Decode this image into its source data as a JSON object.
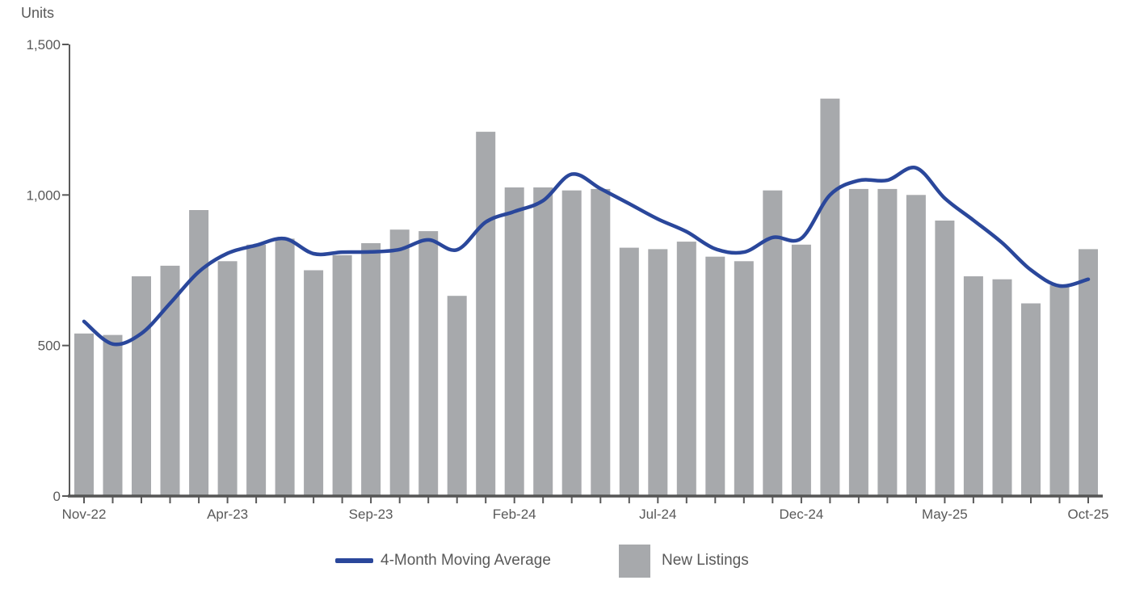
{
  "page": {
    "background": "#ffffff"
  },
  "chart_data": {
    "type": "bar+line",
    "title": "",
    "ylabel": "Units",
    "xlabel": "",
    "ylim": [
      0,
      1500
    ],
    "yticks": [
      0,
      500,
      1000,
      1500
    ],
    "ytick_labels": [
      "0",
      "500",
      "1,000",
      "1,500"
    ],
    "grid": false,
    "legend_position": "bottom",
    "axis_color": "#595959",
    "label_color": "#595959",
    "x": [
      "Nov-22",
      "Dec-22",
      "Jan-23",
      "Feb-23",
      "Mar-23",
      "Apr-23",
      "May-23",
      "Jun-23",
      "Jul-23",
      "Aug-23",
      "Sep-23",
      "Oct-23",
      "Nov-23",
      "Dec-23",
      "Jan-24",
      "Feb-24",
      "Mar-24",
      "Apr-24",
      "May-24",
      "Jun-24",
      "Jul-24",
      "Aug-24",
      "Sep-24",
      "Oct-24",
      "Nov-24",
      "Dec-24",
      "Jan-25",
      "Feb-25",
      "Mar-25",
      "Apr-25",
      "May-25",
      "Jun-25",
      "Jul-25",
      "Aug-25",
      "Sep-25",
      "Oct-25"
    ],
    "xtick_label_interval": 5,
    "xtick_labels_shown": [
      "Nov-22",
      "Apr-23",
      "Sep-23",
      "Feb-24",
      "Jul-24",
      "Dec-24",
      "May-25",
      "Oct-25"
    ],
    "series": [
      {
        "name": "New Listings",
        "type": "bar",
        "color": "#A7A9AC",
        "values": [
          540,
          535,
          730,
          765,
          950,
          780,
          835,
          855,
          750,
          800,
          840,
          885,
          880,
          665,
          1210,
          1025,
          1025,
          1015,
          1020,
          825,
          820,
          845,
          795,
          780,
          1015,
          835,
          1320,
          1020,
          1020,
          1000,
          915,
          730,
          720,
          640,
          700,
          820
        ]
      },
      {
        "name": "4-Month Moving Average",
        "type": "line",
        "color": "#2A479B",
        "values": [
          580,
          505,
          540,
          640,
          745,
          806,
          833,
          855,
          805,
          810,
          811,
          819,
          851,
          818,
          910,
          945,
          981,
          1069,
          1021,
          971,
          920,
          878,
          821,
          810,
          859,
          856,
          1000,
          1048,
          1049,
          1090,
          989,
          916,
          841,
          751,
          698,
          720
        ]
      }
    ]
  }
}
